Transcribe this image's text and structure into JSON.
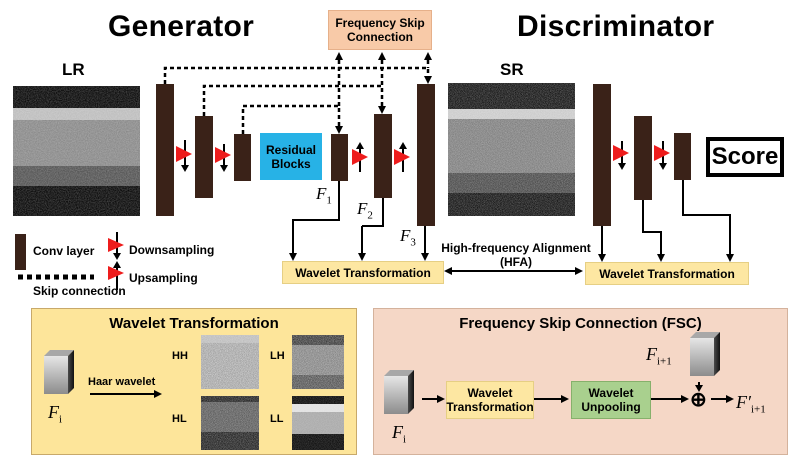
{
  "titles": {
    "generator": "Generator",
    "discriminator": "Discriminator"
  },
  "image_labels": {
    "lr": "LR",
    "sr": "SR"
  },
  "boxes": {
    "fsc": "Frequency Skip Connection",
    "residual": "Residual Blocks",
    "score": "Score",
    "wavelet_left": "Wavelet Transformation",
    "wavelet_right": "Wavelet Transformation"
  },
  "feature_labels": {
    "f1": "F",
    "f1_sub": "1",
    "f2": "F",
    "f2_sub": "2",
    "f3": "F",
    "f3_sub": "3"
  },
  "hfa": {
    "line1": "High-frequency Alignment",
    "line2": "(HFA)"
  },
  "legend": {
    "conv": "Conv layer",
    "down": "Downsampling",
    "up": "Upsampling",
    "skip": "Skip connection"
  },
  "wavelet_panel": {
    "title": "Wavelet Transformation",
    "input_label": "F",
    "input_sub": "i",
    "arrow_label": "Haar wavelet",
    "subbands": [
      "HH",
      "LH",
      "HL",
      "LL"
    ]
  },
  "fsc_panel": {
    "title": "Frequency Skip Connection (FSC)",
    "input_label": "F",
    "input_sub": "i",
    "skip_label": "F",
    "skip_sub": "i+1",
    "box1": "Wavelet Transformation",
    "box2": "Wavelet Unpooling",
    "output_label": "F′",
    "output_sub": "i+1",
    "plus": "⊕"
  },
  "colors": {
    "conv": "#3a2218",
    "fsc_box": "#f8caa8",
    "residual": "#27b2e6",
    "wavelet_box": "#fde7a2",
    "wavelet_panel": "#fde59a",
    "fsc_panel": "#f5d7c6",
    "unpool": "#a9d08e",
    "arrow_red": "#ee1c1c"
  }
}
